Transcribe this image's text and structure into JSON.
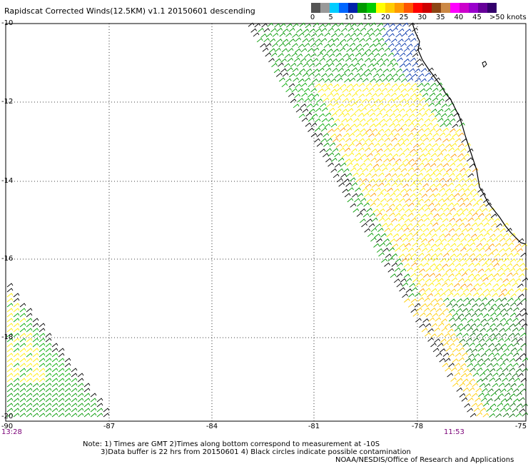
{
  "title": "Rapidscat Corrected Winds(12.5KM) v1.1 20150601 descending",
  "colorbar": {
    "labels": [
      "0",
      "5",
      "10",
      "15",
      "20",
      "25",
      "30",
      "35",
      "40",
      "45",
      ">50 knots"
    ],
    "colors": [
      "#555555",
      "#999999",
      "#00ccff",
      "#0066ff",
      "#0022aa",
      "#009900",
      "#00cc00",
      "#ffff00",
      "#ffcc00",
      "#ff9900",
      "#ff5500",
      "#ff0000",
      "#cc0000",
      "#8b4513",
      "#cc8844",
      "#ff00ff",
      "#cc00cc",
      "#9900cc",
      "#660099",
      "#33006b"
    ]
  },
  "map": {
    "lat_labels": [
      "-10",
      "-12",
      "-14",
      "-16",
      "-18",
      "-20"
    ],
    "lon_labels": [
      "-90",
      "-87",
      "-84",
      "-81",
      "-78",
      "-75"
    ],
    "lat_range": [
      -20,
      -10
    ],
    "lon_range": [
      -90,
      -75
    ],
    "grid": "dotted",
    "time_left": "13:28",
    "time_right": "11:53"
  },
  "notes": {
    "line1": "Note: 1) Times are GMT 2)Times along bottom correspond to measurement at -10S",
    "line2": "3)Data buffer is 22 hrs from 20150601 4) Black circles indicate possible contamination",
    "line3": "NOAA/NESDIS/Office of Research and Applications"
  }
}
